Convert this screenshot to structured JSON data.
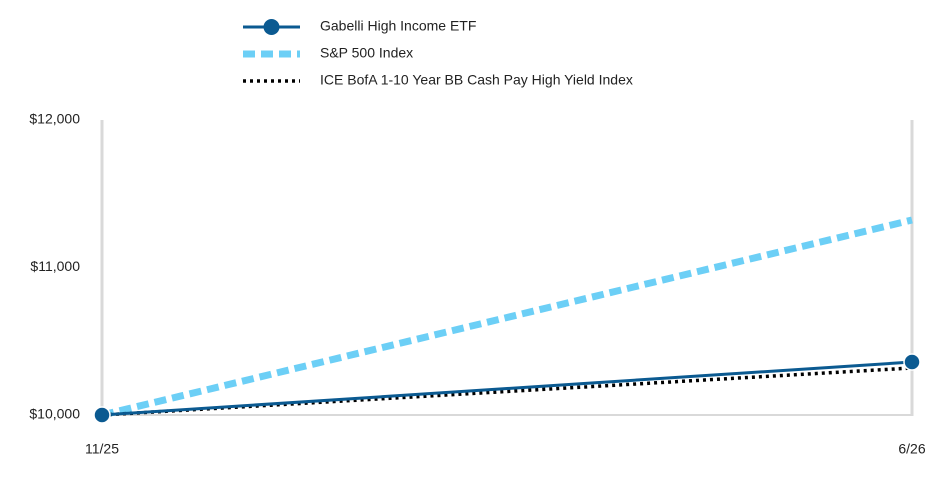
{
  "chart_data": {
    "type": "line",
    "categories": [
      "11/25",
      "6/26"
    ],
    "series": [
      {
        "name": "Gabelli High Income ETF",
        "color": "#0b5a91",
        "style": "solid",
        "marker": true,
        "values": [
          10000,
          10359
        ]
      },
      {
        "name": "S&P 500 Index",
        "color": "#6ccff6",
        "style": "dashed",
        "marker": false,
        "values": [
          10000,
          11322
        ]
      },
      {
        "name": "ICE BofA 1-10 Year BB Cash Pay High Yield Index",
        "color": "#000000",
        "style": "dotted",
        "marker": false,
        "values": [
          10000,
          10319
        ]
      }
    ],
    "ylim": [
      10000,
      12000
    ],
    "yticks": [
      {
        "value": 10000,
        "label": "$10,000"
      },
      {
        "value": 11000,
        "label": "$11,000"
      },
      {
        "value": 12000,
        "label": "$12,000"
      }
    ],
    "legend": "top"
  }
}
